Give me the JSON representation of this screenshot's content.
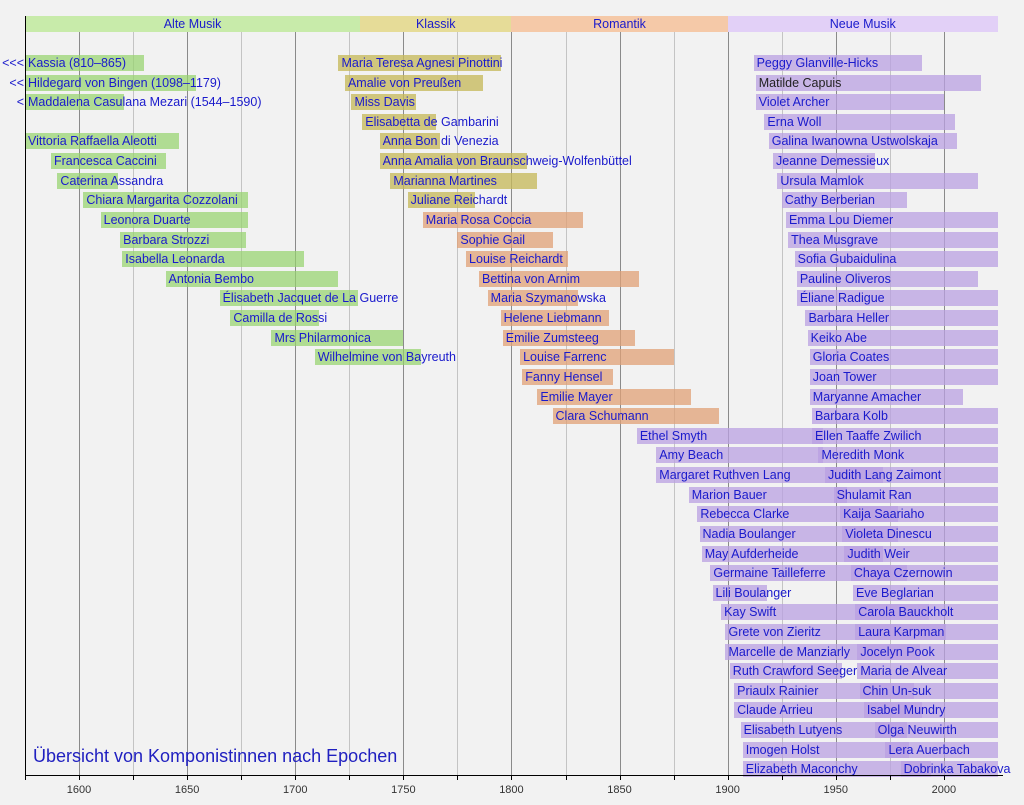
{
  "chart_data": {
    "type": "timeline",
    "title": "Übersicht von Komponistinnen nach Epochen",
    "xlim": [
      1575,
      2025
    ],
    "x_ticks": [
      1600,
      1650,
      1700,
      1750,
      1800,
      1850,
      1900,
      1950,
      2000
    ],
    "grid_step_years": 25,
    "epochs": [
      {
        "name": "Alte Musik",
        "start": 1575,
        "end": 1730,
        "color": "#c8ebaa"
      },
      {
        "name": "Klassik",
        "start": 1730,
        "end": 1800,
        "color": "#e6dc98"
      },
      {
        "name": "Romantik",
        "start": 1800,
        "end": 1900,
        "color": "#f5c9a8"
      },
      {
        "name": "Neue Musik",
        "start": 1900,
        "end": 2025,
        "color": "#e2d0f7"
      }
    ],
    "bar_colors": {
      "alte": "rgba(150,210,110,0.72)",
      "klassik": "rgba(198,186,92,0.78)",
      "romantik": "rgba(224,160,118,0.75)",
      "neue": "rgba(186,160,226,0.75)"
    },
    "columns": [
      [
        {
          "name": "Kassia (810–865)",
          "prefix": "<<<",
          "start": 1575,
          "end": 1630,
          "epoch": "alte"
        },
        {
          "name": "Hildegard von Bingen (1098–1179)",
          "prefix": "<<",
          "start": 1575,
          "end": 1654,
          "epoch": "alte"
        },
        {
          "name": "Maddalena Casulana Mezari (1544–1590)",
          "prefix": "<",
          "start": 1575,
          "end": 1621,
          "epoch": "alte"
        },
        null,
        {
          "name": "Vittoria Raffaella Aleotti",
          "start": 1575,
          "end": 1646,
          "epoch": "alte"
        },
        {
          "name": "Francesca Caccini",
          "start": 1587,
          "end": 1640,
          "epoch": "alte"
        },
        {
          "name": "Caterina Assandra",
          "start": 1590,
          "end": 1618,
          "epoch": "alte"
        },
        {
          "name": "Chiara Margarita Cozzolani",
          "start": 1602,
          "end": 1678,
          "epoch": "alte"
        },
        {
          "name": "Leonora Duarte",
          "start": 1610,
          "end": 1678,
          "epoch": "alte"
        },
        {
          "name": "Barbara Strozzi",
          "start": 1619,
          "end": 1677,
          "epoch": "alte"
        },
        {
          "name": "Isabella Leonarda",
          "start": 1620,
          "end": 1704,
          "epoch": "alte"
        },
        {
          "name": "Antonia Bembo",
          "start": 1640,
          "end": 1720,
          "epoch": "alte"
        },
        {
          "name": "Élisabeth Jacquet de La Guerre",
          "start": 1665,
          "end": 1729,
          "epoch": "alte"
        },
        {
          "name": "Camilla de Rossi",
          "start": 1670,
          "end": 1711,
          "epoch": "alte"
        },
        {
          "name": "Mrs Philarmonica",
          "start": 1689,
          "end": 1750,
          "epoch": "alte"
        },
        {
          "name": "Wilhelmine von Bayreuth",
          "start": 1709,
          "end": 1758,
          "epoch": "alte"
        }
      ],
      [
        {
          "name": "Maria Teresa Agnesi Pinottini",
          "start": 1720,
          "end": 1795,
          "epoch": "klassik"
        },
        {
          "name": "Amalie von Preußen",
          "start": 1723,
          "end": 1787,
          "epoch": "klassik"
        },
        {
          "name": "Miss Davis",
          "start": 1726,
          "end": 1756,
          "epoch": "klassik"
        },
        {
          "name": "Elisabetta de Gambarini",
          "start": 1731,
          "end": 1765,
          "epoch": "klassik"
        },
        {
          "name": "Anna Bon di Venezia",
          "start": 1739,
          "end": 1767,
          "epoch": "klassik"
        },
        {
          "name": "Anna Amalia von Braunschweig-Wolfenbüttel",
          "start": 1739,
          "end": 1807,
          "epoch": "klassik"
        },
        {
          "name": "Marianna Martines",
          "start": 1744,
          "end": 1812,
          "epoch": "klassik"
        },
        {
          "name": "Juliane Reichardt",
          "start": 1752,
          "end": 1783,
          "epoch": "klassik"
        },
        {
          "name": "Maria Rosa Coccia",
          "start": 1759,
          "end": 1833,
          "epoch": "romantik"
        },
        {
          "name": "Sophie Gail",
          "start": 1775,
          "end": 1819,
          "epoch": "romantik"
        },
        {
          "name": "Louise Reichardt",
          "start": 1779,
          "end": 1826,
          "epoch": "romantik"
        },
        {
          "name": "Bettina von Arnim",
          "start": 1785,
          "end": 1859,
          "epoch": "romantik"
        },
        {
          "name": "Maria Szymanowska",
          "start": 1789,
          "end": 1831,
          "epoch": "romantik"
        },
        {
          "name": "Helene Liebmann",
          "start": 1795,
          "end": 1845,
          "epoch": "romantik"
        },
        {
          "name": "Emilie Zumsteeg",
          "start": 1796,
          "end": 1857,
          "epoch": "romantik"
        },
        {
          "name": "Louise Farrenc",
          "start": 1804,
          "end": 1875,
          "epoch": "romantik"
        },
        {
          "name": "Fanny Hensel",
          "start": 1805,
          "end": 1847,
          "epoch": "romantik"
        },
        {
          "name": "Emilie Mayer",
          "start": 1812,
          "end": 1883,
          "epoch": "romantik"
        },
        {
          "name": "Clara Schumann",
          "start": 1819,
          "end": 1896,
          "epoch": "romantik"
        },
        {
          "name": "Ethel Smyth",
          "start": 1858,
          "end": 1944,
          "epoch": "neue"
        },
        {
          "name": "Amy Beach",
          "start": 1867,
          "end": 1944,
          "epoch": "neue"
        },
        {
          "name": "Margaret Ruthven Lang",
          "start": 1867,
          "end": 1972,
          "epoch": "neue"
        },
        {
          "name": "Marion Bauer",
          "start": 1882,
          "end": 1955,
          "epoch": "neue"
        },
        {
          "name": "Rebecca Clarke",
          "start": 1886,
          "end": 1979,
          "epoch": "neue"
        },
        {
          "name": "Nadia Boulanger",
          "start": 1887,
          "end": 1979,
          "epoch": "neue"
        },
        {
          "name": "May Aufderheide",
          "start": 1888,
          "end": 1972,
          "epoch": "neue"
        },
        {
          "name": "Germaine Tailleferre",
          "start": 1892,
          "end": 1983,
          "epoch": "neue"
        },
        {
          "name": "Lili Boulanger",
          "start": 1893,
          "end": 1918,
          "epoch": "neue"
        },
        {
          "name": "Kay Swift",
          "start": 1897,
          "end": 1993,
          "epoch": "neue"
        },
        {
          "name": "Grete von Zieritz",
          "start": 1899,
          "end": 2001,
          "epoch": "neue"
        },
        {
          "name": "Marcelle de Manziarly",
          "start": 1899,
          "end": 1989,
          "epoch": "neue"
        },
        {
          "name": "Ruth Crawford Seeger",
          "start": 1901,
          "end": 1953,
          "epoch": "neue"
        },
        {
          "name": "Priaulx Rainier",
          "start": 1903,
          "end": 1986,
          "epoch": "neue"
        },
        {
          "name": "Claude Arrieu",
          "start": 1903,
          "end": 1990,
          "epoch": "neue"
        },
        {
          "name": "Elisabeth Lutyens",
          "start": 1906,
          "end": 1983,
          "epoch": "neue"
        },
        {
          "name": "Imogen Holst",
          "start": 1907,
          "end": 1984,
          "epoch": "neue"
        },
        {
          "name": "Elizabeth Maconchy",
          "start": 1907,
          "end": 1994,
          "epoch": "neue"
        }
      ],
      [
        {
          "name": "Peggy Glanville-Hicks",
          "start": 1912,
          "end": 1990,
          "epoch": "neue"
        },
        {
          "name": "Matilde Capuis",
          "start": 1913,
          "end": 2017,
          "epoch": "neue",
          "label_color": "#222222"
        },
        {
          "name": "Violet Archer",
          "start": 1913,
          "end": 2000,
          "epoch": "neue"
        },
        {
          "name": "Erna Woll",
          "start": 1917,
          "end": 2005,
          "epoch": "neue"
        },
        {
          "name": "Galina Iwanowna Ustwolskaja",
          "start": 1919,
          "end": 2006,
          "epoch": "neue"
        },
        {
          "name": "Jeanne Demessieux",
          "start": 1921,
          "end": 1968,
          "epoch": "neue"
        },
        {
          "name": "Ursula Mamlok",
          "start": 1923,
          "end": 2016,
          "epoch": "neue"
        },
        {
          "name": "Cathy Berberian",
          "start": 1925,
          "end": 1983,
          "epoch": "neue"
        },
        {
          "name": "Emma Lou Diemer",
          "start": 1927,
          "end": 2025,
          "epoch": "neue"
        },
        {
          "name": "Thea Musgrave",
          "start": 1928,
          "end": 2025,
          "epoch": "neue"
        },
        {
          "name": "Sofia Gubaidulina",
          "start": 1931,
          "end": 2025,
          "epoch": "neue"
        },
        {
          "name": "Pauline Oliveros",
          "start": 1932,
          "end": 2016,
          "epoch": "neue"
        },
        {
          "name": "Éliane Radigue",
          "start": 1932,
          "end": 2025,
          "epoch": "neue"
        },
        {
          "name": "Barbara Heller",
          "start": 1936,
          "end": 2025,
          "epoch": "neue"
        },
        {
          "name": "Keiko Abe",
          "start": 1937,
          "end": 2025,
          "epoch": "neue"
        },
        {
          "name": "Gloria Coates",
          "start": 1938,
          "end": 2025,
          "epoch": "neue"
        },
        {
          "name": "Joan Tower",
          "start": 1938,
          "end": 2025,
          "epoch": "neue"
        },
        {
          "name": "Maryanne Amacher",
          "start": 1938,
          "end": 2009,
          "epoch": "neue"
        },
        {
          "name": "Barbara Kolb",
          "start": 1939,
          "end": 2025,
          "epoch": "neue"
        },
        {
          "name": "Ellen Taaffe Zwilich",
          "start": 1939,
          "end": 2025,
          "epoch": "neue"
        },
        {
          "name": "Meredith Monk",
          "start": 1942,
          "end": 2025,
          "epoch": "neue"
        },
        {
          "name": "Judith Lang Zaimont",
          "start": 1945,
          "end": 2025,
          "epoch": "neue"
        },
        {
          "name": "Shulamit Ran",
          "start": 1949,
          "end": 2025,
          "epoch": "neue"
        },
        {
          "name": "Kaija Saariaho",
          "start": 1952,
          "end": 2025,
          "epoch": "neue"
        },
        {
          "name": "Violeta Dinescu",
          "start": 1953,
          "end": 2025,
          "epoch": "neue"
        },
        {
          "name": "Judith Weir",
          "start": 1954,
          "end": 2025,
          "epoch": "neue"
        },
        {
          "name": "Chaya Czernowin",
          "start": 1957,
          "end": 2025,
          "epoch": "neue"
        },
        {
          "name": "Eve Beglarian",
          "start": 1958,
          "end": 2025,
          "epoch": "neue"
        },
        {
          "name": "Carola Bauckholt",
          "start": 1959,
          "end": 2025,
          "epoch": "neue"
        },
        {
          "name": "Laura Karpman",
          "start": 1959,
          "end": 2025,
          "epoch": "neue"
        },
        {
          "name": "Jocelyn Pook",
          "start": 1960,
          "end": 2025,
          "epoch": "neue"
        },
        {
          "name": "Maria de Alvear",
          "start": 1960,
          "end": 2025,
          "epoch": "neue"
        },
        {
          "name": "Chin Un-suk",
          "start": 1961,
          "end": 2025,
          "epoch": "neue"
        },
        {
          "name": "Isabel Mundry",
          "start": 1963,
          "end": 2025,
          "epoch": "neue"
        },
        {
          "name": "Olga Neuwirth",
          "start": 1968,
          "end": 2025,
          "epoch": "neue"
        },
        {
          "name": "Lera Auerbach",
          "start": 1973,
          "end": 2025,
          "epoch": "neue"
        },
        {
          "name": "Dobrinka Tabakova",
          "start": 1980,
          "end": 2025,
          "epoch": "neue"
        }
      ]
    ]
  }
}
